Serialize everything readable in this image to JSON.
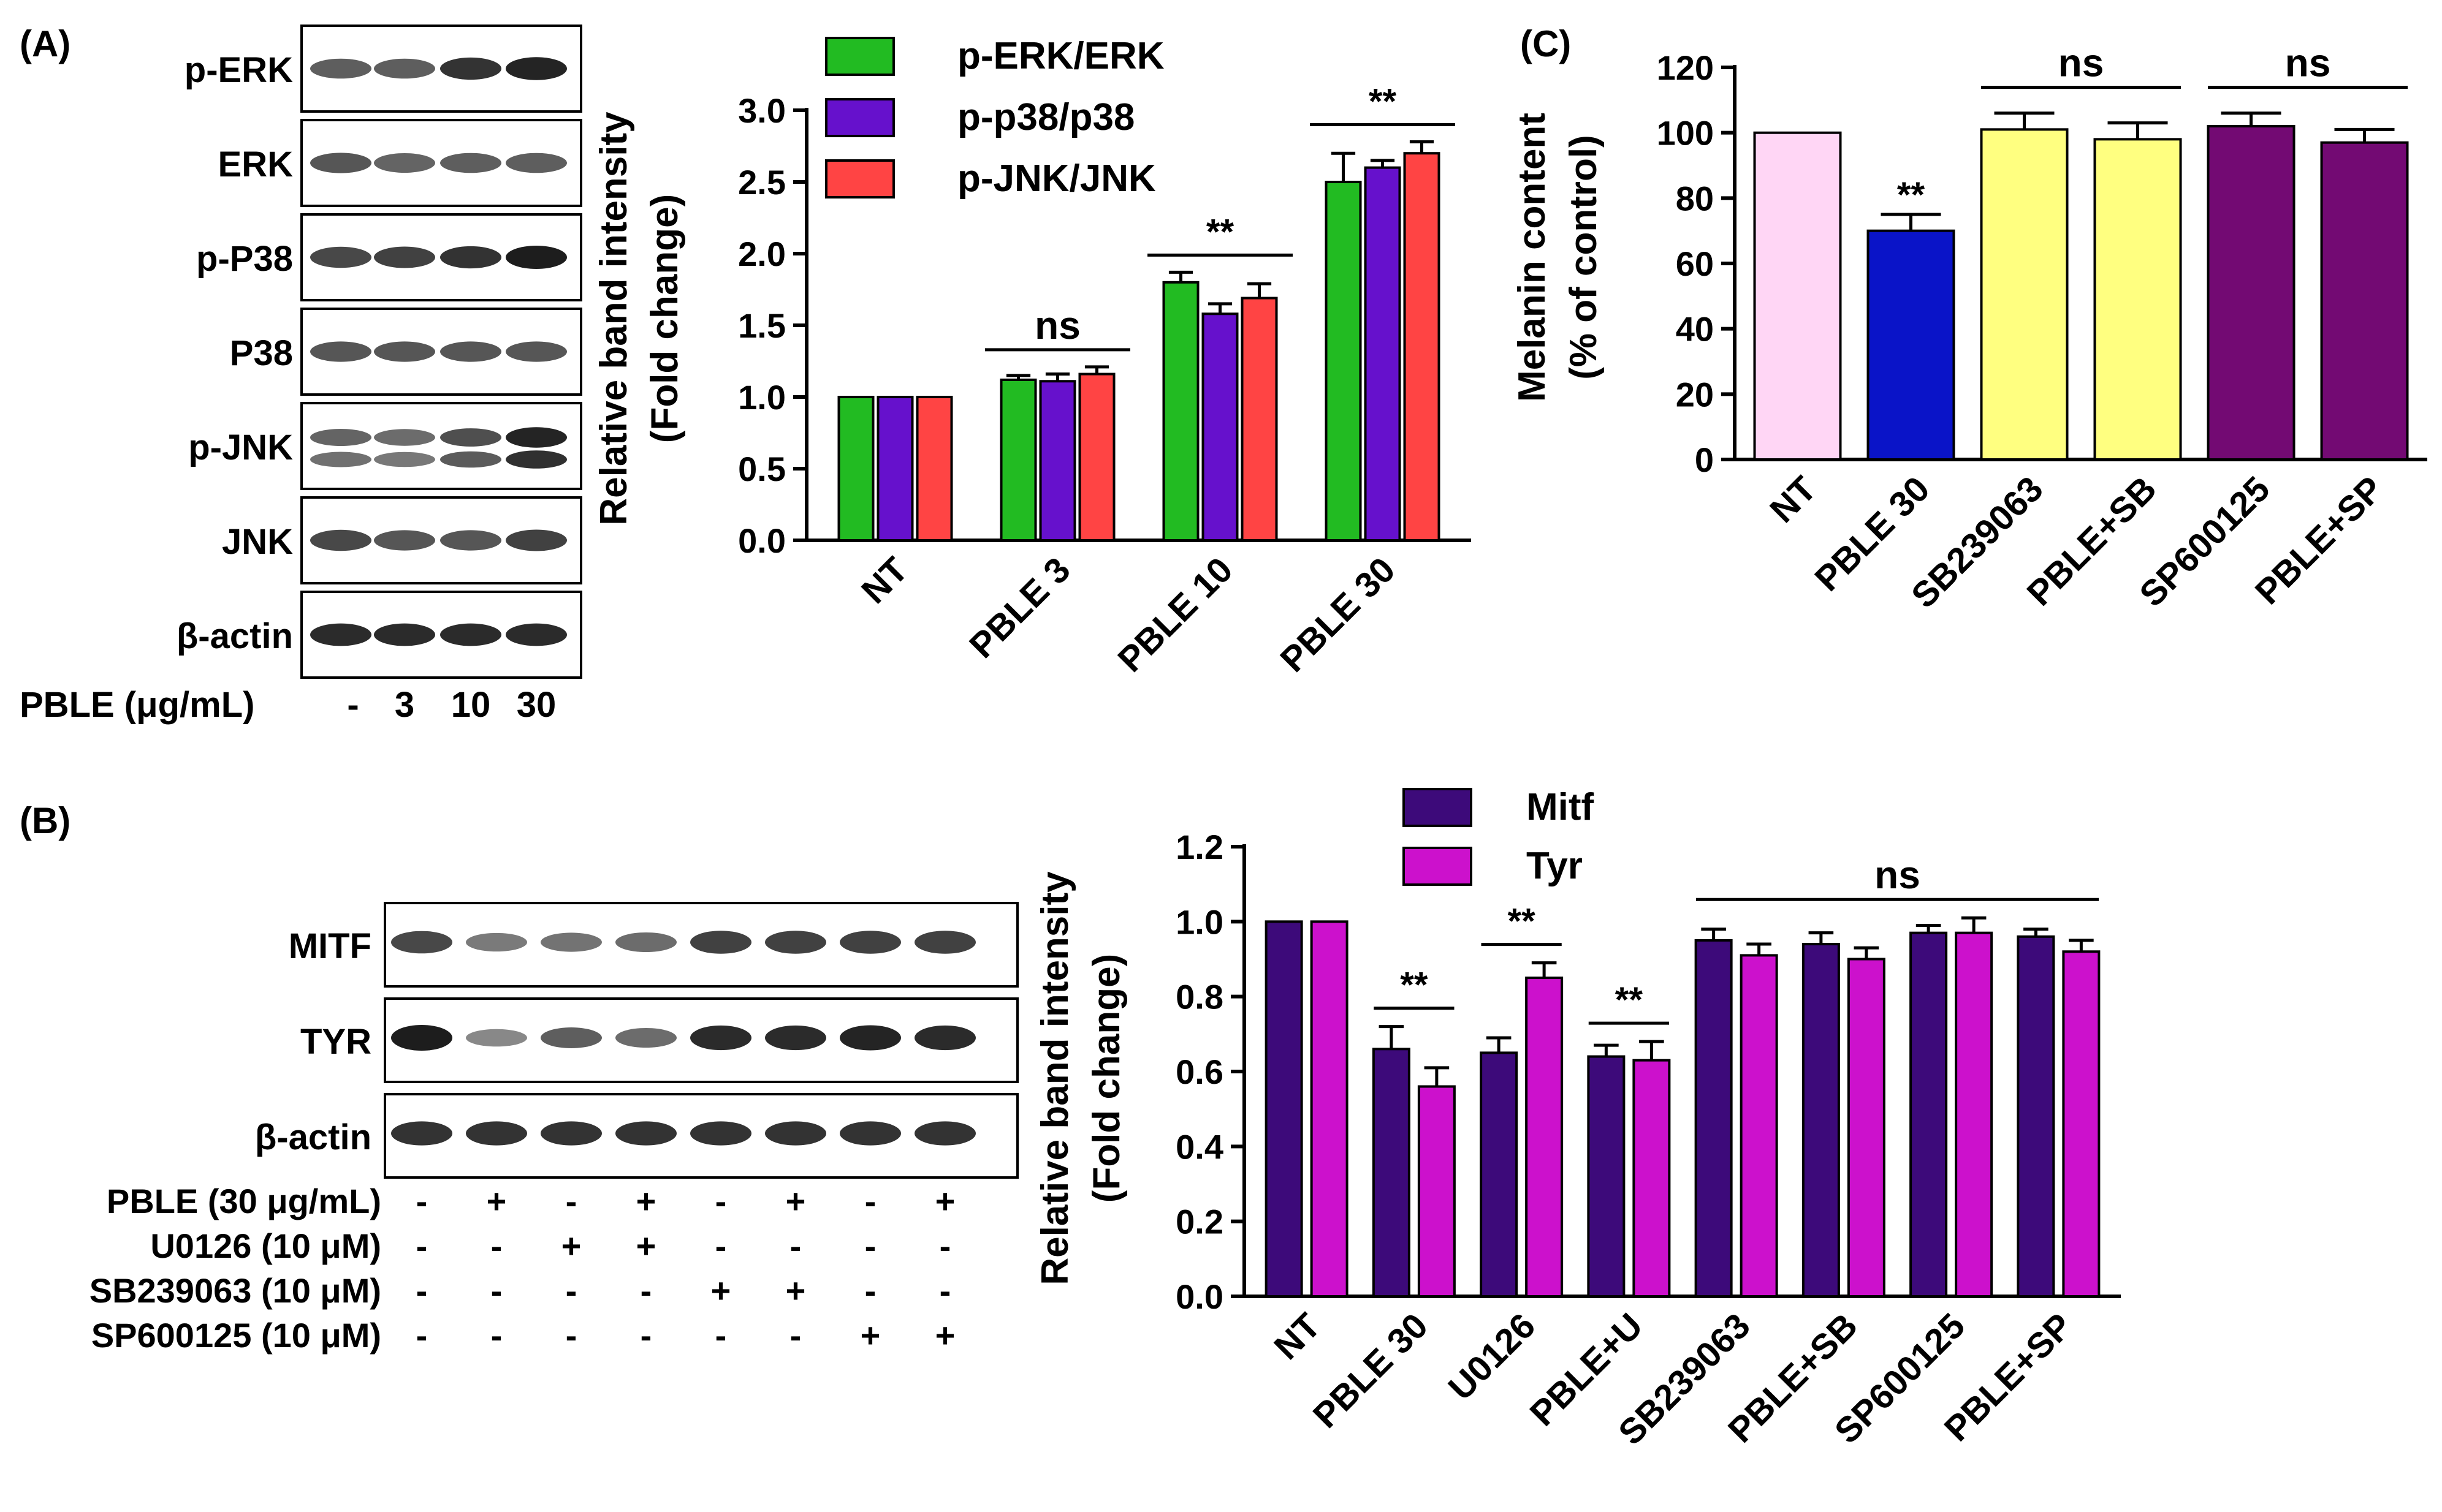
{
  "panels": {
    "A": {
      "letter": "(A)",
      "blot": {
        "rows": [
          "p-ERK",
          "ERK",
          "p-P38",
          "P38",
          "p-JNK",
          "JNK",
          "β-actin"
        ],
        "dose_label": "PBLE (μg/mL)",
        "doses": [
          "-",
          "3",
          "10",
          "30"
        ]
      }
    },
    "B": {
      "letter": "(B)",
      "blot": {
        "rows": [
          "MITF",
          "TYR",
          "β-actin"
        ],
        "treatments": [
          {
            "label": "PBLE (30 μg/mL)",
            "signs": [
              "-",
              "+",
              "-",
              "+",
              "-",
              "+",
              "-",
              "+"
            ]
          },
          {
            "label": "U0126 (10 μM)",
            "signs": [
              "-",
              "-",
              "+",
              "+",
              "-",
              "-",
              "-",
              "-"
            ]
          },
          {
            "label": "SB239063 (10 μM)",
            "signs": [
              "-",
              "-",
              "-",
              "-",
              "+",
              "+",
              "-",
              "-"
            ]
          },
          {
            "label": "SP600125 (10 μM)",
            "signs": [
              "-",
              "-",
              "-",
              "-",
              "-",
              "-",
              "+",
              "+"
            ]
          }
        ]
      }
    },
    "C": {
      "letter": "(C)"
    }
  },
  "colors": {
    "erk": "#22bb22",
    "p38": "#6611cc",
    "jnk": "#ff4444",
    "mitf": "#3d0a7a",
    "tyr": "#cc11cc",
    "c_nt": "#ffd6f5",
    "c_pble": "#0a14c8",
    "c_sb": "#ffff80",
    "c_sp": "#730a73"
  },
  "chart_data": [
    {
      "id": "A",
      "type": "bar",
      "categories": [
        "NT",
        "PBLE 3",
        "PBLE 10",
        "PBLE 30"
      ],
      "series": [
        {
          "name": "p-ERK/ERK",
          "values": [
            1.0,
            1.12,
            1.8,
            2.5
          ],
          "errors": [
            0,
            0.03,
            0.07,
            0.2
          ]
        },
        {
          "name": "p-p38/p38",
          "values": [
            1.0,
            1.11,
            1.58,
            2.6
          ],
          "errors": [
            0,
            0.05,
            0.07,
            0.05
          ]
        },
        {
          "name": "p-JNK/JNK",
          "values": [
            1.0,
            1.16,
            1.69,
            2.7
          ],
          "errors": [
            0,
            0.05,
            0.1,
            0.08
          ]
        }
      ],
      "ylabel": "Relative band intensity",
      "ylabel2": "(Fold change)",
      "ylim": [
        0,
        3
      ],
      "yticks": [
        "0.0",
        "0.5",
        "1.0",
        "1.5",
        "2.0",
        "2.5",
        "3.0"
      ],
      "legend": "top",
      "annotations": [
        {
          "text": "ns",
          "from": 1,
          "to": 1
        },
        {
          "text": "**",
          "from": 2,
          "to": 2
        },
        {
          "text": "**",
          "from": 3,
          "to": 3
        }
      ]
    },
    {
      "id": "B",
      "type": "bar",
      "categories": [
        "NT",
        "PBLE 30",
        "U0126",
        "PBLE+U",
        "SB239063",
        "PBLE+SB",
        "SP600125",
        "PBLE+SP"
      ],
      "series": [
        {
          "name": "Mitf",
          "values": [
            1.0,
            0.66,
            0.65,
            0.64,
            0.95,
            0.94,
            0.97,
            0.96
          ],
          "errors": [
            0,
            0.06,
            0.04,
            0.03,
            0.03,
            0.03,
            0.02,
            0.02
          ]
        },
        {
          "name": "Tyr",
          "values": [
            1.0,
            0.56,
            0.85,
            0.63,
            0.91,
            0.9,
            0.97,
            0.92
          ],
          "errors": [
            0,
            0.05,
            0.04,
            0.05,
            0.03,
            0.03,
            0.04,
            0.03
          ]
        }
      ],
      "ylabel": "Relative band intensity",
      "ylabel2": "(Fold change)",
      "ylim": [
        0,
        1.2
      ],
      "yticks": [
        "0.0",
        "0.2",
        "0.4",
        "0.6",
        "0.8",
        "1.0",
        "1.2"
      ],
      "legend": "top",
      "annotations": [
        {
          "text": "**",
          "from": 1,
          "to": 1
        },
        {
          "text": "**",
          "from": 2,
          "to": 2
        },
        {
          "text": "**",
          "from": 3,
          "to": 3
        },
        {
          "text": "ns",
          "from": 4,
          "to": 7
        }
      ]
    },
    {
      "id": "C",
      "type": "bar",
      "categories": [
        "NT",
        "PBLE 30",
        "SB239063",
        "PBLE+SB",
        "SP600125",
        "PBLE+SP"
      ],
      "values": [
        100,
        70,
        101,
        98,
        102,
        97
      ],
      "errors": [
        0,
        5,
        5,
        5,
        4,
        4
      ],
      "ylabel": "Melanin content",
      "ylabel2": "(% of control)",
      "ylim": [
        0,
        120
      ],
      "yticks": [
        "0",
        "20",
        "40",
        "60",
        "80",
        "100",
        "120"
      ],
      "annotations": [
        {
          "text": "**",
          "over": 1
        },
        {
          "text": "ns",
          "from": 2,
          "to": 3
        },
        {
          "text": "ns",
          "from": 4,
          "to": 5
        }
      ]
    }
  ]
}
